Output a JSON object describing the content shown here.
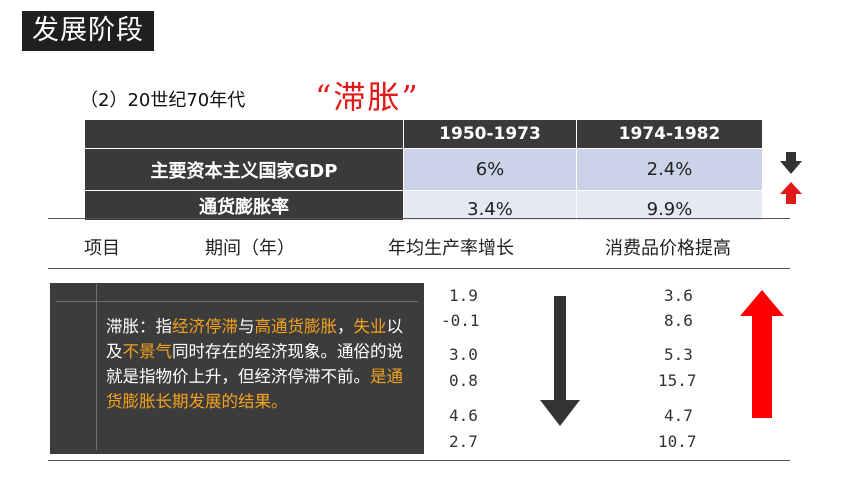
{
  "header": {
    "badge": "发展阶段"
  },
  "section": {
    "subtitle": "（2）20世纪70年代",
    "keyword": "“滞胀”"
  },
  "summary_table": {
    "columns": [
      "1950-1973",
      "1974-1982"
    ],
    "rows": [
      {
        "label": "主要资本主义国家GDP",
        "values": [
          "6%",
          "2.4%"
        ]
      },
      {
        "label": "通货膨胀率",
        "values": [
          "3.4%",
          "9.9%"
        ]
      }
    ]
  },
  "trend_indicators": {
    "gdp": "down-arrow-icon",
    "inflation": "up-arrow-icon"
  },
  "detail_table": {
    "headers": {
      "item": "项目",
      "period": "期间（年）",
      "productivity": "年均生产率增长",
      "prices": "消费品价格提高"
    },
    "productivity_values": [
      "1.9",
      "-0.1",
      "3.0",
      "0.8",
      "4.6",
      "2.7"
    ],
    "price_values": [
      "3.6",
      "8.6",
      "5.3",
      "15.7",
      "4.7",
      "10.7"
    ]
  },
  "definition": {
    "p1": "滞胀：指",
    "h1": "经济停滞",
    "p2": "与",
    "h2": "高通货膨胀",
    "p3": "，",
    "h3": "失业",
    "p4": "以及",
    "h4": "不景气",
    "p5": "同时存在的经济现象。通俗的说就是指物价上升，但经济停滞不前。",
    "h5": "是通货膨胀长期发展的结果。"
  },
  "colors": {
    "accent_red": "#e31919",
    "highlight_orange": "#f4a21d",
    "dark": "#3a3a3a",
    "cell_blue": "#ccd3e8",
    "cell_blue_light": "#e6e9f3"
  }
}
